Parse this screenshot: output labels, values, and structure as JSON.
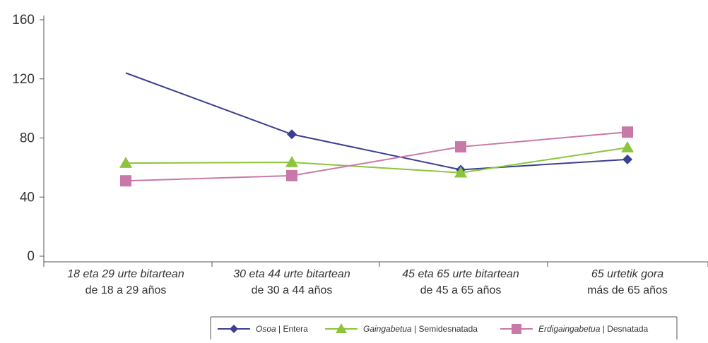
{
  "chart_data": {
    "type": "line",
    "categories": [
      {
        "line1": "18 eta 29 urte bitartean",
        "line2": "de 18 a 29 años"
      },
      {
        "line1": "30 eta 44 urte bitartean",
        "line2": "de 30 a 44 años"
      },
      {
        "line1": "45 eta 65 urte bitartean",
        "line2": "de 45 a 65 años"
      },
      {
        "line1": "65 urtetik gora",
        "line2": "más de 65 años"
      }
    ],
    "yticks": [
      "0",
      "40",
      "80",
      "120",
      "160"
    ],
    "ylim": [
      0,
      160
    ],
    "series": [
      {
        "name_eu": "Osoa",
        "name_es": "Entera",
        "marker": "diamond",
        "color": "#3b3f8f",
        "values": [
          124,
          82.5,
          58.5,
          65.5
        ]
      },
      {
        "name_eu": "Gaingabetua",
        "name_es": "Semidesnatada",
        "marker": "triangle",
        "color": "#8cc43c",
        "values": [
          63,
          63.5,
          56.5,
          73.5
        ]
      },
      {
        "name_eu": "Erdigaingabetua",
        "name_es": "Desnatada",
        "marker": "square",
        "color": "#c979a8",
        "values": [
          51,
          54.5,
          74,
          84
        ]
      }
    ],
    "legend_separator": " | ",
    "grid": false,
    "legend_position": "bottom-right"
  }
}
